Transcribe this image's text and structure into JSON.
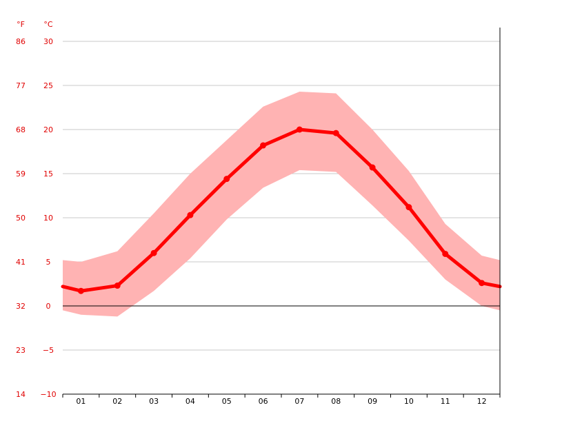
{
  "chart_data": {
    "type": "line",
    "title": "",
    "xlabel": "",
    "ylabel": "",
    "units": {
      "fahrenheit": "°F",
      "celsius": "°C"
    },
    "categories": [
      "01",
      "02",
      "03",
      "04",
      "05",
      "06",
      "07",
      "08",
      "09",
      "10",
      "11",
      "12"
    ],
    "series": [
      {
        "values": [
          1.7,
          2.3,
          6.0,
          10.3,
          14.4,
          18.2,
          20.0,
          19.6,
          15.7,
          11.2,
          5.9,
          2.6
        ]
      }
    ],
    "band": {
      "upper": [
        5.0,
        6.2,
        10.5,
        15.0,
        18.8,
        22.6,
        24.3,
        24.1,
        20.0,
        15.3,
        9.3,
        5.7
      ],
      "lower": [
        -1.0,
        -1.2,
        1.7,
        5.4,
        9.8,
        13.4,
        15.4,
        15.2,
        11.4,
        7.4,
        3.0,
        0.0
      ]
    },
    "edge_values": {
      "start": 2.2,
      "end": 2.2,
      "band_start": [
        5.2,
        -0.5
      ],
      "band_end": [
        5.2,
        -0.5
      ]
    },
    "y_ticks_celsius": [
      "30",
      "25",
      "20",
      "15",
      "10",
      "5",
      "0",
      "−5",
      "−10"
    ],
    "y_ticks_fahrenheit": [
      "86",
      "77",
      "68",
      "59",
      "50",
      "41",
      "32",
      "23",
      "14"
    ],
    "ylim": [
      -10,
      30
    ],
    "grid": true,
    "colors": {
      "line": "#ff0000",
      "band": "#ffb3b3",
      "text": "#e00000",
      "grid": "#c8c8c8",
      "zero_line": "#000000"
    }
  }
}
